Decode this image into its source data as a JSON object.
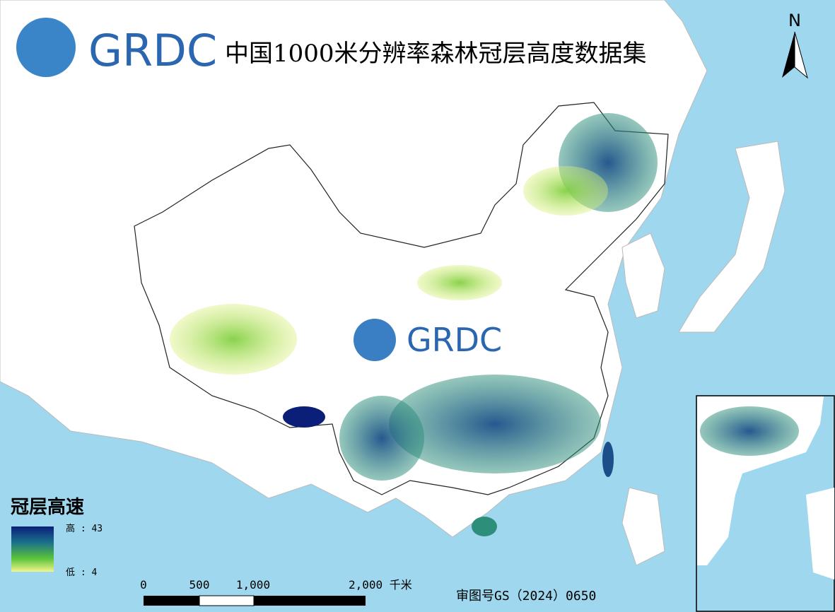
{
  "header": {
    "logo": "GRDC",
    "title": "中国1000米分辨率森林冠层高度数据集"
  },
  "north": "N",
  "watermark": "GRDC",
  "legend": {
    "title": "冠层高速",
    "high": "高 : 43",
    "low": "低 : 4"
  },
  "scale_bar": {
    "labels": [
      "0",
      "500",
      "1,000",
      "2,000 千米"
    ]
  },
  "approval": "审图号GS（2024）0650"
}
